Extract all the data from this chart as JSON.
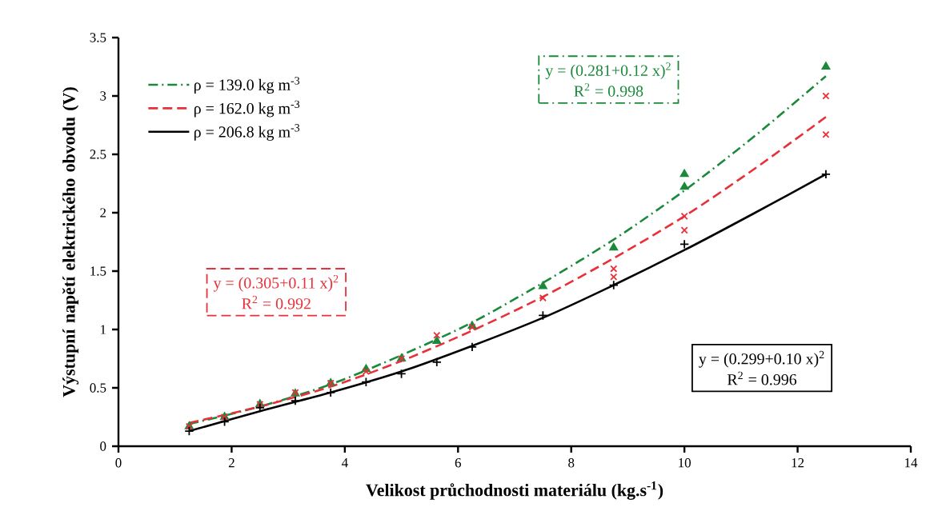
{
  "chart_data": {
    "type": "scatter",
    "xlabel": "Velikost průchodnosti materiálu (kg.s$^{-1}$)",
    "ylabel": "Výstupní napětí elektrického obvodu (V)",
    "xlim": [
      0,
      14
    ],
    "xticks": [
      0,
      2,
      4,
      6,
      8,
      10,
      12,
      14
    ],
    "ylim": [
      0,
      3.5
    ],
    "yticks": [
      0,
      0.5,
      1,
      1.5,
      2,
      2.5,
      3,
      3.5
    ],
    "grid": false,
    "legend": "top left",
    "annotations": [
      "y = (0.281+0.12 x)$^{2}$",
      "R$^{2}$ = 0.998",
      "y = (0.305+0.11 x)$^{2}$",
      "R$^{2}$ = 0.992",
      "y = (0.299+0.10 x)$^{2}$",
      "R$^{2}$ = 0.996"
    ],
    "series": [
      {
        "name": "ρ = 139.0 kg m$^{-3}$",
        "type": "line",
        "color": "#1a8a3a",
        "line_style": "dashdot",
        "marker": "none",
        "x": [
          1.25,
          2.5,
          3.75,
          5,
          6.25,
          7.5,
          8.75,
          10,
          11.25,
          12.5
        ],
        "values": [
          0.19,
          0.34,
          0.53,
          0.78,
          1.06,
          1.4,
          1.77,
          2.19,
          2.66,
          3.17
        ]
      },
      {
        "name": "ρ = 162.0 kg m$^{-3}$",
        "type": "line",
        "color": "#e8303a",
        "line_style": "dashed",
        "marker": "none",
        "x": [
          1.25,
          2.5,
          3.75,
          5,
          6.25,
          7.5,
          8.75,
          10,
          11.25,
          12.5
        ],
        "values": [
          0.2,
          0.34,
          0.51,
          0.73,
          0.99,
          1.28,
          1.61,
          1.97,
          2.38,
          2.82
        ]
      },
      {
        "name": "ρ = 206.8 kg m$^{-3}$",
        "type": "line",
        "color": "#000000",
        "line_style": "solid",
        "marker": "none",
        "x": [
          1.25,
          2.5,
          3.75,
          5,
          6.25,
          7.5,
          8.75,
          10,
          11.25,
          12.5
        ],
        "values": [
          0.13,
          0.3,
          0.46,
          0.64,
          0.86,
          1.1,
          1.38,
          1.68,
          2.0,
          2.33
        ]
      },
      {
        "color": "#1a8a3a",
        "marker": "triangle",
        "x": [
          1.25,
          1.875,
          2.5,
          3.125,
          3.75,
          4.375,
          5,
          5.625,
          6.25,
          7.5,
          8.75,
          10,
          10,
          12.5
        ],
        "values": [
          0.17,
          0.25,
          0.36,
          0.45,
          0.54,
          0.66,
          0.75,
          0.9,
          1.03,
          1.37,
          1.7,
          2.22,
          2.33,
          3.25
        ]
      },
      {
        "color": "#e8303a",
        "marker": "cross",
        "x": [
          1.25,
          1.875,
          2.5,
          3.125,
          3.75,
          4.375,
          5,
          5.625,
          6.25,
          7.5,
          8.75,
          8.75,
          10,
          10,
          12.5,
          12.5
        ],
        "values": [
          0.17,
          0.25,
          0.36,
          0.46,
          0.54,
          0.64,
          0.75,
          0.95,
          1.02,
          1.27,
          1.52,
          1.45,
          1.97,
          1.85,
          3.0,
          2.67
        ]
      },
      {
        "color": "#000000",
        "marker": "plus",
        "x": [
          1.25,
          1.875,
          2.5,
          3.125,
          3.75,
          4.375,
          5,
          5.625,
          6.25,
          7.5,
          8.75,
          10,
          12.5
        ],
        "values": [
          0.13,
          0.21,
          0.33,
          0.39,
          0.46,
          0.55,
          0.62,
          0.72,
          0.85,
          1.12,
          1.38,
          1.73,
          2.33
        ]
      }
    ]
  }
}
